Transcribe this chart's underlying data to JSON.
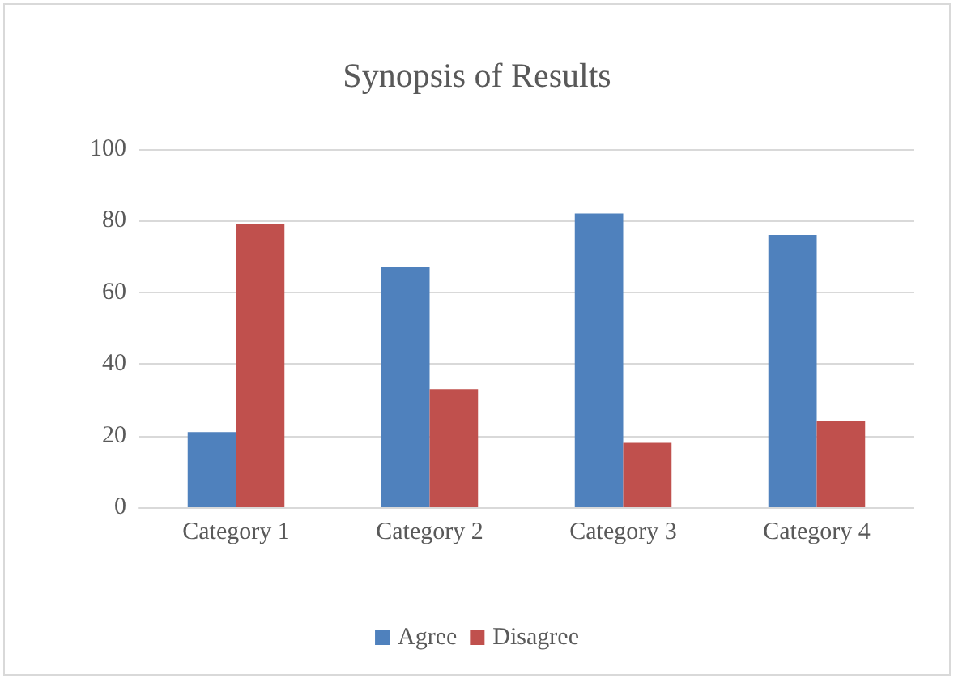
{
  "chart_data": {
    "type": "bar",
    "title": "Synopsis of Results",
    "categories": [
      "Category 1",
      "Category 2",
      "Category 3",
      "Category 4"
    ],
    "series": [
      {
        "name": "Agree",
        "color": "#4f81bd",
        "values": [
          21,
          67,
          82,
          76
        ]
      },
      {
        "name": "Disagree",
        "color": "#c0504d",
        "values": [
          79,
          33,
          18,
          24
        ]
      }
    ],
    "ylim": [
      0,
      100
    ],
    "yticks": [
      0,
      20,
      40,
      60,
      80,
      100
    ],
    "grid": "y",
    "legend": "bottom"
  }
}
